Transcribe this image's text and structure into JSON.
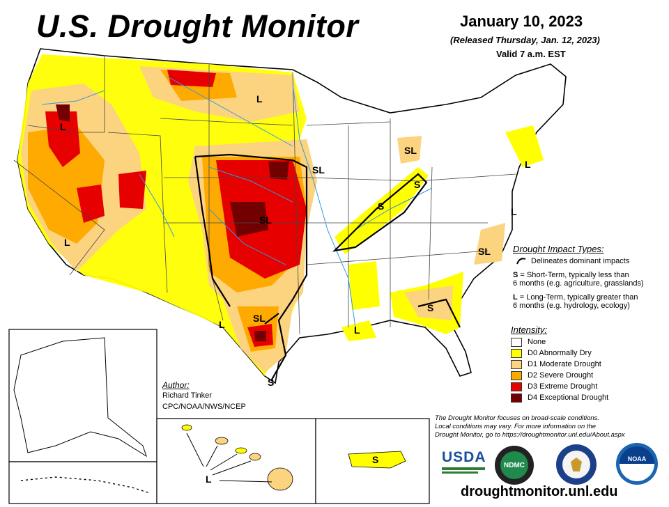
{
  "header": {
    "title": "U.S. Drought Monitor",
    "date": "January 10, 2023",
    "released": "(Released Thursday, Jan. 12, 2023)",
    "valid": "Valid 7 a.m. EST"
  },
  "impact_types": {
    "heading": "Drought Impact Types:",
    "line_desc": "Delineates dominant impacts",
    "short_term_key": "S",
    "short_term_desc_1": "= Short-Term, typically less than",
    "short_term_desc_2": "6 months (e.g. agriculture, grasslands)",
    "long_term_key": "L",
    "long_term_desc_1": "= Long-Term, typically greater than",
    "long_term_desc_2": "6 months (e.g. hydrology, ecology)"
  },
  "intensity": {
    "heading": "Intensity:",
    "levels": [
      {
        "label": "None",
        "color": "#ffffff"
      },
      {
        "label": "D0 Abnormally Dry",
        "color": "#ffff00"
      },
      {
        "label": "D1 Moderate Drought",
        "color": "#fcd37f"
      },
      {
        "label": "D2 Severe Drought",
        "color": "#ffaa00"
      },
      {
        "label": "D3 Extreme Drought",
        "color": "#e60000"
      },
      {
        "label": "D4 Exceptional Drought",
        "color": "#730000"
      }
    ]
  },
  "author": {
    "heading": "Author:",
    "name": "Richard Tinker",
    "org": "CPC/NOAA/NWS/NCEP"
  },
  "disclaimer": {
    "line1": "The Drought Monitor focuses on broad-scale conditions.",
    "line2": "Local conditions may vary. For more information on the",
    "line3": "Drought Monitor, go to https://droughtmonitor.unl.edu/About.aspx"
  },
  "map_labels": {
    "or": "L",
    "ca": "L",
    "mt": "L",
    "ks": "SL",
    "ia": "SL",
    "mi": "SL",
    "oh": "S",
    "ind": "S",
    "tx": "SL",
    "wtx": "L",
    "la": "L",
    "stx": "S",
    "ga": "S",
    "nc": "SL",
    "ne": "L",
    "md": "L",
    "hi": "L",
    "pr": "S"
  },
  "logos": {
    "usda": "USDA",
    "ndmc": "NDMC",
    "noaa": "NOAA"
  },
  "url": "droughtmonitor.unl.edu"
}
